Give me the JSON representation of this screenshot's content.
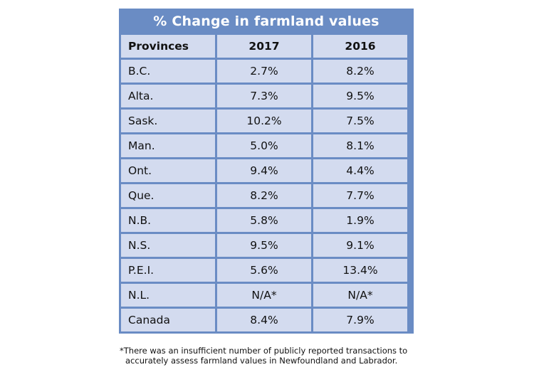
{
  "table": {
    "title": "% Change in farmland values",
    "headers": [
      "Provinces",
      "2017",
      "2016"
    ],
    "rows": [
      [
        "B.C.",
        "2.7%",
        "8.2%"
      ],
      [
        "Alta.",
        "7.3%",
        "9.5%"
      ],
      [
        "Sask.",
        "10.2%",
        "7.5%"
      ],
      [
        "Man.",
        "5.0%",
        "8.1%"
      ],
      [
        "Ont.",
        "9.4%",
        "4.4%"
      ],
      [
        "Que.",
        "8.2%",
        "7.7%"
      ],
      [
        "N.B.",
        "5.8%",
        "1.9%"
      ],
      [
        "N.S.",
        "9.5%",
        "9.1%"
      ],
      [
        "P.E.I.",
        "5.6%",
        "13.4%"
      ],
      [
        "N.L.",
        "N/A*",
        "N/A*"
      ],
      [
        "Canada",
        "8.4%",
        "7.9%"
      ]
    ]
  },
  "footnote": {
    "line1": "*There was an insufficient number of publicly reported transactions to",
    "line2": "accurately assess farmland values in Newfoundland and Labrador."
  },
  "colors": {
    "header_blue": "#6a8cc4",
    "cell_fill": "#d3dbef"
  }
}
